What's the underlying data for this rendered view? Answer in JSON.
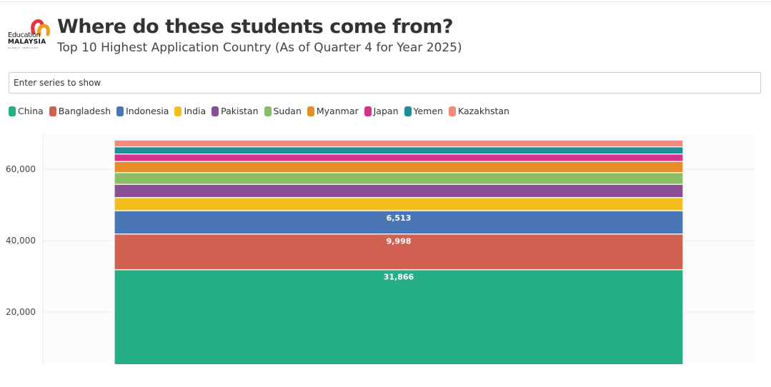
{
  "header": {
    "logo_text": "Education MALAYSIA GLOBAL SERVICES",
    "logo_line1": "Education",
    "logo_line2": "MALAYSIA",
    "logo_line3": "GLOBAL SERVICES",
    "title": "Where do these students come from?",
    "subtitle": "Top 10 Highest Application Country (As of Quarter 4 for Year 2025)"
  },
  "search": {
    "placeholder": "Enter series to show"
  },
  "chart_data": {
    "type": "bar",
    "stacked": true,
    "categories": [
      ""
    ],
    "ylim": [
      0,
      68000
    ],
    "yticks": [
      20000,
      40000,
      60000
    ],
    "ytick_labels": [
      "20,000",
      "40,000",
      "60,000"
    ],
    "grid": true,
    "legend_placement": "top-left",
    "series": [
      {
        "name": "China",
        "values": [
          31866
        ],
        "color": "#26ae86",
        "label": "31,866"
      },
      {
        "name": "Bangladesh",
        "values": [
          9998
        ],
        "color": "#d0604f",
        "label": "9,998"
      },
      {
        "name": "Indonesia",
        "values": [
          6513
        ],
        "color": "#4a76b5",
        "label": "6,513"
      },
      {
        "name": "India",
        "values": [
          3700
        ],
        "color": "#f3bf1e",
        "label": ""
      },
      {
        "name": "Pakistan",
        "values": [
          3700
        ],
        "color": "#8a4e96",
        "label": ""
      },
      {
        "name": "Sudan",
        "values": [
          3300
        ],
        "color": "#8bbe64",
        "label": ""
      },
      {
        "name": "Myanmar",
        "values": [
          3100
        ],
        "color": "#e88c2a",
        "label": ""
      },
      {
        "name": "Japan",
        "values": [
          2100
        ],
        "color": "#d6328f",
        "label": ""
      },
      {
        "name": "Yemen",
        "values": [
          2000
        ],
        "color": "#1b8e97",
        "label": ""
      },
      {
        "name": "Kazakhstan",
        "values": [
          1900
        ],
        "color": "#f28b7e",
        "label": ""
      }
    ]
  }
}
